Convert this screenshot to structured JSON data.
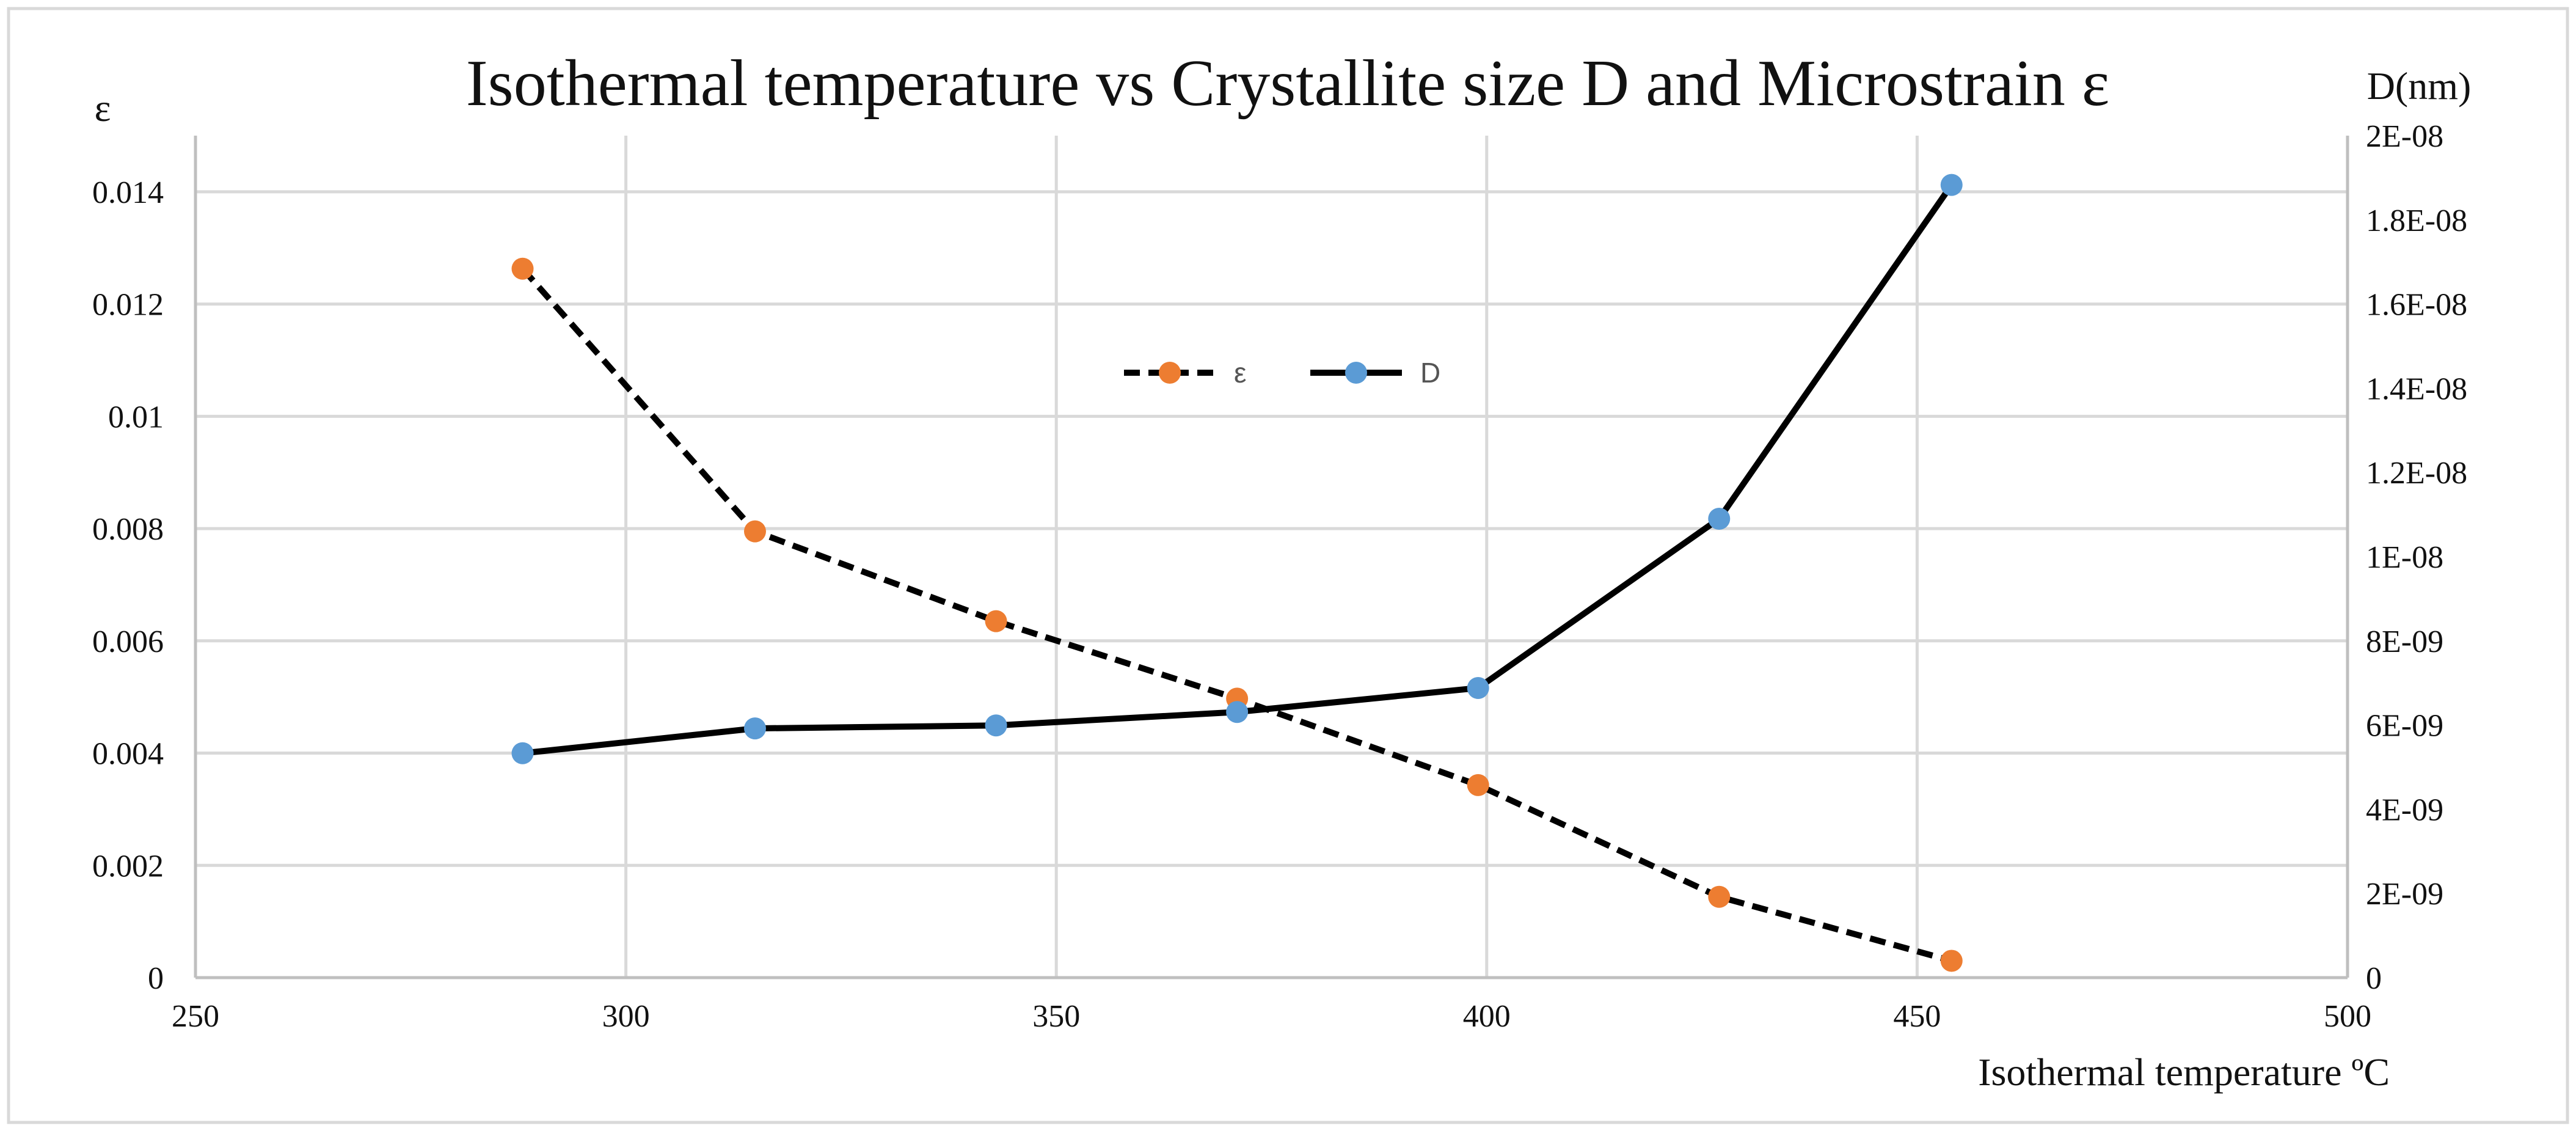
{
  "chart_data": {
    "type": "line",
    "title": "Isothermal temperature vs Crystallite size D and Microstrain ε",
    "xlabel": "Isothermal temperature ºC",
    "ylabel_left": "ε",
    "ylabel_right": "D(nm)",
    "xlim": [
      250,
      500
    ],
    "x_ticks": [
      "250",
      "300",
      "350",
      "400",
      "450",
      "500"
    ],
    "ylim_left": [
      0,
      0.015
    ],
    "y_ticks_left": [
      "0",
      "0.002",
      "0.004",
      "0.006",
      "0.008",
      "0.01",
      "0.012",
      "0.014"
    ],
    "ylim_right": [
      0,
      2e-08
    ],
    "y_ticks_right": [
      "0",
      "2E-09",
      "4E-09",
      "6E-09",
      "8E-09",
      "1E-08",
      "1.2E-08",
      "1.4E-08",
      "1.6E-08",
      "1.8E-08",
      "2E-08"
    ],
    "grid": true,
    "legend_position": "top-center",
    "series": [
      {
        "name": "ε",
        "axis": "left",
        "style": "dashed",
        "marker_color": "#ED7D31",
        "line_color": "#000000",
        "x": [
          288,
          315,
          343,
          371,
          399,
          427,
          454
        ],
        "values": [
          0.01263,
          0.00795,
          0.00635,
          0.00497,
          0.00343,
          0.00144,
          0.0003
        ]
      },
      {
        "name": "D",
        "axis": "right",
        "style": "solid",
        "marker_color": "#5B9BD5",
        "line_color": "#000000",
        "x": [
          288,
          315,
          343,
          371,
          399,
          427,
          454
        ],
        "values": [
          5.33e-09,
          5.92e-09,
          5.99e-09,
          6.31e-09,
          6.88e-09,
          1.09e-08,
          1.883e-08
        ]
      }
    ]
  }
}
